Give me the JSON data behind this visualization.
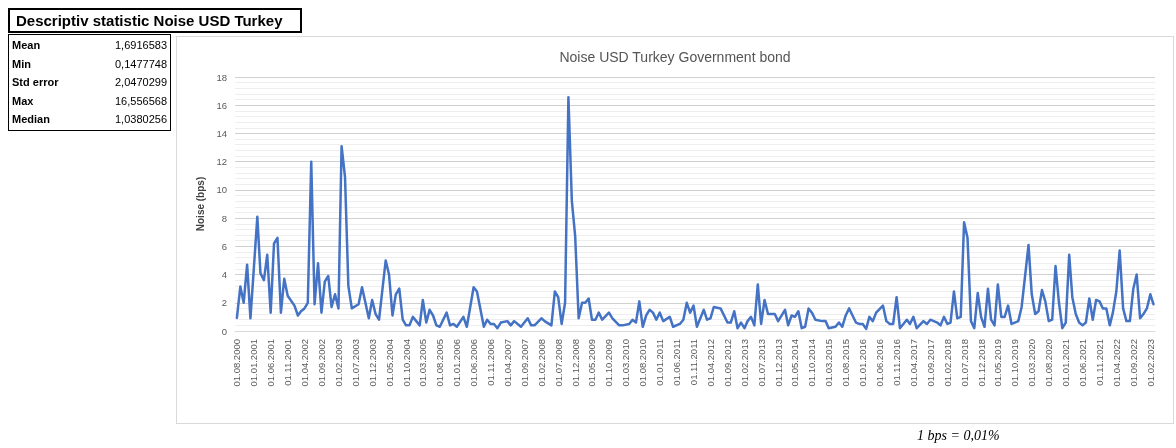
{
  "chart_data": [
    {
      "type": "other",
      "title": "Descriptiv statistic Noise USD Turkey",
      "annotations": [
        "Mean",
        "1,6916583",
        "Min",
        "0,1477748",
        "Std error",
        "2,0470299",
        "Max",
        "16,556568",
        "Median",
        "1,0380256"
      ]
    },
    {
      "type": "line",
      "title": "Noise USD Turkey Government bond",
      "ylabel": "Noise (bps)",
      "x": [
        "2000-08",
        "2000-09",
        "2000-10",
        "2000-11",
        "2000-12",
        "2001-02",
        "2001-03",
        "2001-04",
        "2001-05",
        "2001-06",
        "2001-07",
        "2001-08",
        "2001-09",
        "2001-10",
        "2001-11",
        "2002-01",
        "2002-02",
        "2002-03",
        "2002-04",
        "2002-05",
        "2002-06",
        "2002-07",
        "2002-08",
        "2002-09",
        "2002-10",
        "2002-11",
        "2002-12",
        "2003-01",
        "2003-02",
        "2003-03",
        "2003-04",
        "2003-05",
        "2003-06",
        "2003-08",
        "2003-09",
        "2003-11",
        "2003-12",
        "2004-01",
        "2004-02",
        "2004-04",
        "2004-05",
        "2004-06",
        "2004-07",
        "2004-08",
        "2004-09",
        "2004-10",
        "2004-11",
        "2004-12",
        "2005-02",
        "2005-03",
        "2005-04",
        "2005-05",
        "2005-06",
        "2005-07",
        "2005-08",
        "2005-10",
        "2005-11",
        "2005-12",
        "2006-01",
        "2006-03",
        "2006-04",
        "2006-06",
        "2006-07",
        "2006-09",
        "2006-10",
        "2006-11",
        "2006-12",
        "2007-01",
        "2007-02",
        "2007-04",
        "2007-05",
        "2007-06",
        "2007-08",
        "2007-10",
        "2007-11",
        "2007-12",
        "2008-02",
        "2008-03",
        "2008-05",
        "2008-06",
        "2008-07",
        "2008-08",
        "2008-09",
        "2008-10",
        "2008-11",
        "2008-12",
        "2009-01",
        "2009-02",
        "2009-03",
        "2009-04",
        "2009-05",
        "2009-06",
        "2009-07",
        "2009-08",
        "2009-10",
        "2009-11",
        "2010-01",
        "2010-02",
        "2010-04",
        "2010-05",
        "2010-06",
        "2010-07",
        "2010-08",
        "2010-09",
        "2010-10",
        "2010-11",
        "2010-12",
        "2011-01",
        "2011-02",
        "2011-04",
        "2011-05",
        "2011-07",
        "2011-08",
        "2011-09",
        "2011-10",
        "2011-11",
        "2011-12",
        "2012-02",
        "2012-03",
        "2012-04",
        "2012-05",
        "2012-07",
        "2012-09",
        "2012-10",
        "2012-11",
        "2012-12",
        "2013-01",
        "2013-02",
        "2013-03",
        "2013-04",
        "2013-05",
        "2013-06",
        "2013-07",
        "2013-08",
        "2013-09",
        "2013-11",
        "2013-12",
        "2014-02",
        "2014-03",
        "2014-04",
        "2014-05",
        "2014-06",
        "2014-07",
        "2014-08",
        "2014-09",
        "2014-10",
        "2014-11",
        "2015-01",
        "2015-02",
        "2015-03",
        "2015-05",
        "2015-06",
        "2015-07",
        "2015-08",
        "2015-09",
        "2015-11",
        "2015-12",
        "2016-01",
        "2016-02",
        "2016-03",
        "2016-04",
        "2016-05",
        "2016-07",
        "2016-08",
        "2016-09",
        "2016-10",
        "2016-11",
        "2016-12",
        "2017-02",
        "2017-03",
        "2017-04",
        "2017-05",
        "2017-07",
        "2017-08",
        "2017-09",
        "2017-11",
        "2017-12",
        "2018-01",
        "2018-02",
        "2018-03",
        "2018-04",
        "2018-05",
        "2018-06",
        "2018-07",
        "2018-08",
        "2018-09",
        "2018-10",
        "2018-11",
        "2018-12",
        "2019-01",
        "2019-02",
        "2019-03",
        "2019-04",
        "2019-05",
        "2019-06",
        "2019-07",
        "2019-08",
        "2019-09",
        "2019-10",
        "2019-11",
        "2019-12",
        "2020-02",
        "2020-03",
        "2020-04",
        "2020-05",
        "2020-06",
        "2020-07",
        "2020-08",
        "2020-09",
        "2020-10",
        "2020-11",
        "2020-12",
        "2021-01",
        "2021-02",
        "2021-03",
        "2021-04",
        "2021-05",
        "2021-06",
        "2021-07",
        "2021-08",
        "2021-09",
        "2021-10",
        "2021-11",
        "2021-12",
        "2022-01",
        "2022-02",
        "2022-03",
        "2022-04",
        "2022-05",
        "2022-06",
        "2022-07",
        "2022-08",
        "2022-09",
        "2022-10",
        "2022-11",
        "2022-12",
        "2023-01",
        "2023-02",
        "2023-03"
      ],
      "series": [
        {
          "color": "#4472c4",
          "values": [
            0.93,
            3.15,
            2.0,
            4.7,
            0.9,
            8.1,
            4.1,
            3.6,
            5.4,
            1.3,
            6.2,
            6.6,
            1.3,
            3.7,
            2.5,
            1.8,
            1.1,
            1.4,
            1.6,
            2.0,
            12.0,
            1.9,
            4.8,
            1.3,
            3.5,
            3.9,
            1.7,
            2.6,
            1.6,
            13.1,
            10.9,
            3.2,
            1.6,
            1.9,
            3.1,
            0.9,
            2.2,
            1.2,
            0.8,
            5.0,
            4.0,
            1.1,
            2.6,
            3.0,
            0.8,
            0.4,
            0.4,
            1.0,
            0.4,
            2.2,
            0.6,
            1.5,
            1.1,
            0.4,
            0.3,
            1.3,
            0.4,
            0.5,
            0.3,
            1.0,
            0.3,
            3.1,
            2.8,
            0.3,
            0.8,
            0.5,
            0.5,
            0.2,
            0.6,
            0.7,
            0.4,
            0.7,
            0.3,
            0.9,
            0.4,
            0.4,
            0.9,
            0.7,
            0.4,
            2.8,
            2.4,
            0.5,
            2.0,
            16.56,
            9.2,
            6.7,
            0.9,
            2.0,
            2.0,
            2.3,
            0.8,
            0.8,
            1.3,
            0.8,
            1.3,
            0.9,
            0.4,
            0.4,
            0.5,
            0.8,
            0.6,
            2.1,
            0.3,
            1.1,
            1.5,
            1.3,
            0.8,
            1.3,
            0.7,
            1.0,
            0.3,
            0.5,
            0.8,
            2.0,
            1.3,
            1.8,
            0.3,
            1.5,
            0.8,
            0.9,
            1.7,
            1.6,
            0.6,
            0.6,
            1.4,
            0.2,
            0.6,
            0.2,
            0.7,
            1.0,
            0.4,
            3.3,
            0.5,
            2.2,
            1.2,
            1.2,
            0.7,
            1.5,
            0.4,
            1.1,
            1.0,
            1.4,
            0.2,
            0.3,
            1.6,
            1.3,
            0.8,
            0.7,
            0.7,
            0.2,
            0.3,
            0.6,
            0.3,
            1.1,
            1.6,
            0.6,
            0.5,
            0.5,
            0.15,
            1.0,
            0.7,
            1.3,
            1.8,
            0.7,
            0.5,
            0.5,
            2.4,
            0.2,
            0.8,
            0.5,
            1.0,
            0.2,
            0.7,
            0.5,
            0.8,
            0.6,
            0.4,
            1.0,
            0.5,
            0.6,
            2.8,
            0.9,
            1.0,
            7.7,
            6.6,
            0.7,
            0.2,
            2.7,
            1.0,
            0.3,
            3.0,
            0.8,
            0.4,
            3.3,
            1.0,
            1.0,
            1.8,
            0.5,
            0.6,
            0.7,
            1.7,
            6.1,
            2.6,
            1.2,
            1.4,
            2.9,
            2.1,
            0.7,
            0.8,
            4.6,
            2.0,
            0.2,
            0.6,
            5.4,
            2.4,
            1.2,
            0.6,
            0.4,
            0.6,
            2.3,
            0.8,
            2.2,
            2.1,
            1.6,
            1.6,
            0.4,
            1.3,
            2.8,
            5.7,
            1.6,
            0.7,
            0.7,
            3.0,
            4.0,
            0.9,
            1.2,
            1.6,
            2.6,
            1.9
          ]
        }
      ],
      "xlim": [
        "2000-07-15",
        "2023-03-15"
      ],
      "xticks": [
        {
          "value": "2000-08",
          "label": "01.08.2000"
        },
        {
          "value": "2001-01",
          "label": "01.01.2001"
        },
        {
          "value": "2001-06",
          "label": "01.06.2001"
        },
        {
          "value": "2001-11",
          "label": "01.11.2001"
        },
        {
          "value": "2002-04",
          "label": "01.04.2002"
        },
        {
          "value": "2002-09",
          "label": "01.09.2002"
        },
        {
          "value": "2003-02",
          "label": "01.02.2003"
        },
        {
          "value": "2003-07",
          "label": "01.07.2003"
        },
        {
          "value": "2003-12",
          "label": "01.12.2003"
        },
        {
          "value": "2004-05",
          "label": "01.05.2004"
        },
        {
          "value": "2004-10",
          "label": "01.10.2004"
        },
        {
          "value": "2005-03",
          "label": "01.03.2005"
        },
        {
          "value": "2005-08",
          "label": "01.08.2005"
        },
        {
          "value": "2006-01",
          "label": "01.01.2006"
        },
        {
          "value": "2006-06",
          "label": "01.06.2006"
        },
        {
          "value": "2006-11",
          "label": "01.11.2006"
        },
        {
          "value": "2007-04",
          "label": "01.04.2007"
        },
        {
          "value": "2007-09",
          "label": "01.09.2007"
        },
        {
          "value": "2008-02",
          "label": "01.02.2008"
        },
        {
          "value": "2008-07",
          "label": "01.07.2008"
        },
        {
          "value": "2008-12",
          "label": "01.12.2008"
        },
        {
          "value": "2009-05",
          "label": "01.05.2009"
        },
        {
          "value": "2009-10",
          "label": "01.10.2009"
        },
        {
          "value": "2010-03",
          "label": "01.03.2010"
        },
        {
          "value": "2010-08",
          "label": "01.08.2010"
        },
        {
          "value": "2011-01",
          "label": "01.01.2011"
        },
        {
          "value": "2011-06",
          "label": "01.06.2011"
        },
        {
          "value": "2011-11",
          "label": "01.11.2011"
        },
        {
          "value": "2012-04",
          "label": "01.04.2012"
        },
        {
          "value": "2012-09",
          "label": "01.09.2012"
        },
        {
          "value": "2013-02",
          "label": "01.02.2013"
        },
        {
          "value": "2013-07",
          "label": "01.07.2013"
        },
        {
          "value": "2013-12",
          "label": "01.12.2013"
        },
        {
          "value": "2014-05",
          "label": "01.05.2014"
        },
        {
          "value": "2014-10",
          "label": "01.10.2014"
        },
        {
          "value": "2015-03",
          "label": "01.03.2015"
        },
        {
          "value": "2015-08",
          "label": "01.08.2015"
        },
        {
          "value": "2016-01",
          "label": "01.01.2016"
        },
        {
          "value": "2016-06",
          "label": "01.06.2016"
        },
        {
          "value": "2016-11",
          "label": "01.11.2016"
        },
        {
          "value": "2017-04",
          "label": "01.04.2017"
        },
        {
          "value": "2017-09",
          "label": "01.09.2017"
        },
        {
          "value": "2018-02",
          "label": "01.02.2018"
        },
        {
          "value": "2018-07",
          "label": "01.07.2018"
        },
        {
          "value": "2018-12",
          "label": "01.12.2018"
        },
        {
          "value": "2019-05",
          "label": "01.05.2019"
        },
        {
          "value": "2019-10",
          "label": "01.10.2019"
        },
        {
          "value": "2020-03",
          "label": "01.03.2020"
        },
        {
          "value": "2020-08",
          "label": "01.08.2020"
        },
        {
          "value": "2021-01",
          "label": "01.01.2021"
        },
        {
          "value": "2021-06",
          "label": "01.06.2021"
        },
        {
          "value": "2021-11",
          "label": "01.11.2021"
        },
        {
          "value": "2022-04",
          "label": "01.04.2022"
        },
        {
          "value": "2022-09",
          "label": "01.09.2022"
        },
        {
          "value": "2023-02",
          "label": "01.02.2023"
        }
      ],
      "ylim": [
        0,
        18
      ],
      "yticks": [
        0,
        2,
        4,
        6,
        8,
        10,
        12,
        14,
        16,
        18
      ],
      "grid": "y",
      "line_style": "solid",
      "annotations": [
        "1 bps = 0,01%"
      ]
    }
  ]
}
